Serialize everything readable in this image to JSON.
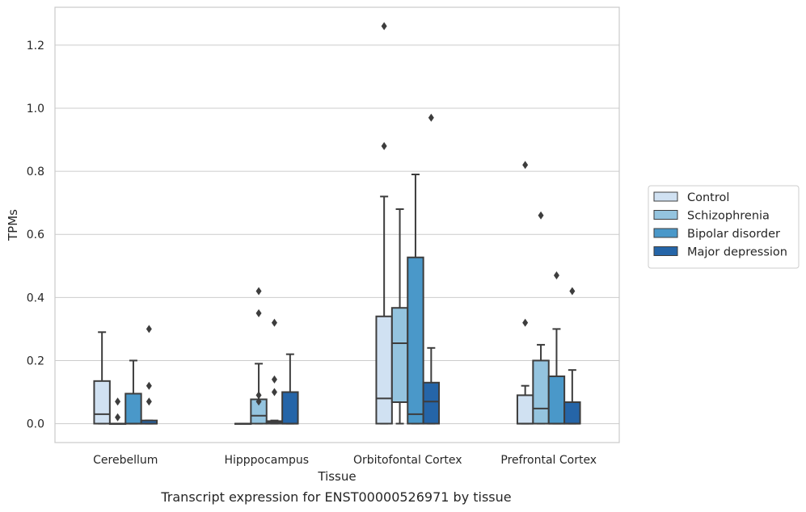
{
  "caption": "Transcript expression for ENST00000526971 by tissue",
  "chart_data": {
    "type": "box",
    "xlabel": "Tissue",
    "ylabel": "TPMs",
    "ylim": [
      -0.06,
      1.32
    ],
    "yticks": [
      0.0,
      0.2,
      0.4,
      0.6,
      0.8,
      1.0,
      1.2
    ],
    "ytick_labels": [
      "0.0",
      "0.2",
      "0.4",
      "0.6",
      "0.8",
      "1.0",
      "1.2"
    ],
    "grid": true,
    "legend_position": "right",
    "categories": [
      "Cerebellum",
      "Hipppocampus",
      "Orbitofontal Cortex",
      "Prefrontal Cortex"
    ],
    "series": [
      {
        "name": "Control",
        "color": "#d0e1f2",
        "boxes": [
          {
            "min": 0.0,
            "q1": 0.0,
            "median": 0.03,
            "q3": 0.135,
            "max": 0.29,
            "outliers": []
          },
          {
            "min": 0.0,
            "q1": 0.0,
            "median": 0.0,
            "q3": 0.0,
            "max": 0.0,
            "outliers": []
          },
          {
            "min": 0.0,
            "q1": 0.0,
            "median": 0.08,
            "q3": 0.34,
            "max": 0.72,
            "outliers": [
              0.88,
              1.26
            ]
          },
          {
            "min": 0.0,
            "q1": 0.0,
            "median": 0.0,
            "q3": 0.09,
            "max": 0.12,
            "outliers": [
              0.32,
              0.82
            ]
          }
        ]
      },
      {
        "name": "Schizophrenia",
        "color": "#94c4df",
        "boxes": [
          {
            "min": 0.0,
            "q1": 0.0,
            "median": 0.0,
            "q3": 0.0,
            "max": 0.0,
            "outliers": [
              0.02,
              0.07
            ]
          },
          {
            "min": 0.0,
            "q1": 0.0,
            "median": 0.025,
            "q3": 0.077,
            "max": 0.19,
            "outliers": [
              0.07,
              0.09,
              0.35,
              0.42
            ]
          },
          {
            "min": 0.0,
            "q1": 0.068,
            "median": 0.255,
            "q3": 0.367,
            "max": 0.68,
            "outliers": []
          },
          {
            "min": 0.0,
            "q1": 0.0,
            "median": 0.048,
            "q3": 0.2,
            "max": 0.25,
            "outliers": [
              0.66
            ]
          }
        ]
      },
      {
        "name": "Bipolar disorder",
        "color": "#4a98c9",
        "boxes": [
          {
            "min": 0.0,
            "q1": 0.0,
            "median": 0.0,
            "q3": 0.095,
            "max": 0.2,
            "outliers": []
          },
          {
            "min": 0.0,
            "q1": 0.0,
            "median": 0.005,
            "q3": 0.008,
            "max": 0.01,
            "outliers": [
              0.1,
              0.14,
              0.32
            ]
          },
          {
            "min": 0.0,
            "q1": 0.0,
            "median": 0.03,
            "q3": 0.527,
            "max": 0.79,
            "outliers": []
          },
          {
            "min": 0.0,
            "q1": 0.0,
            "median": 0.0,
            "q3": 0.15,
            "max": 0.3,
            "outliers": [
              0.47
            ]
          }
        ]
      },
      {
        "name": "Major depression",
        "color": "#2565a8",
        "boxes": [
          {
            "min": 0.0,
            "q1": 0.0,
            "median": 0.0,
            "q3": 0.01,
            "max": 0.01,
            "outliers": [
              0.07,
              0.12,
              0.3
            ]
          },
          {
            "min": 0.0,
            "q1": 0.0,
            "median": 0.0,
            "q3": 0.1,
            "max": 0.22,
            "outliers": []
          },
          {
            "min": 0.0,
            "q1": 0.0,
            "median": 0.07,
            "q3": 0.13,
            "max": 0.24,
            "outliers": [
              0.97
            ]
          },
          {
            "min": 0.0,
            "q1": 0.0,
            "median": 0.0,
            "q3": 0.068,
            "max": 0.17,
            "outliers": [
              0.42
            ]
          }
        ]
      }
    ]
  }
}
